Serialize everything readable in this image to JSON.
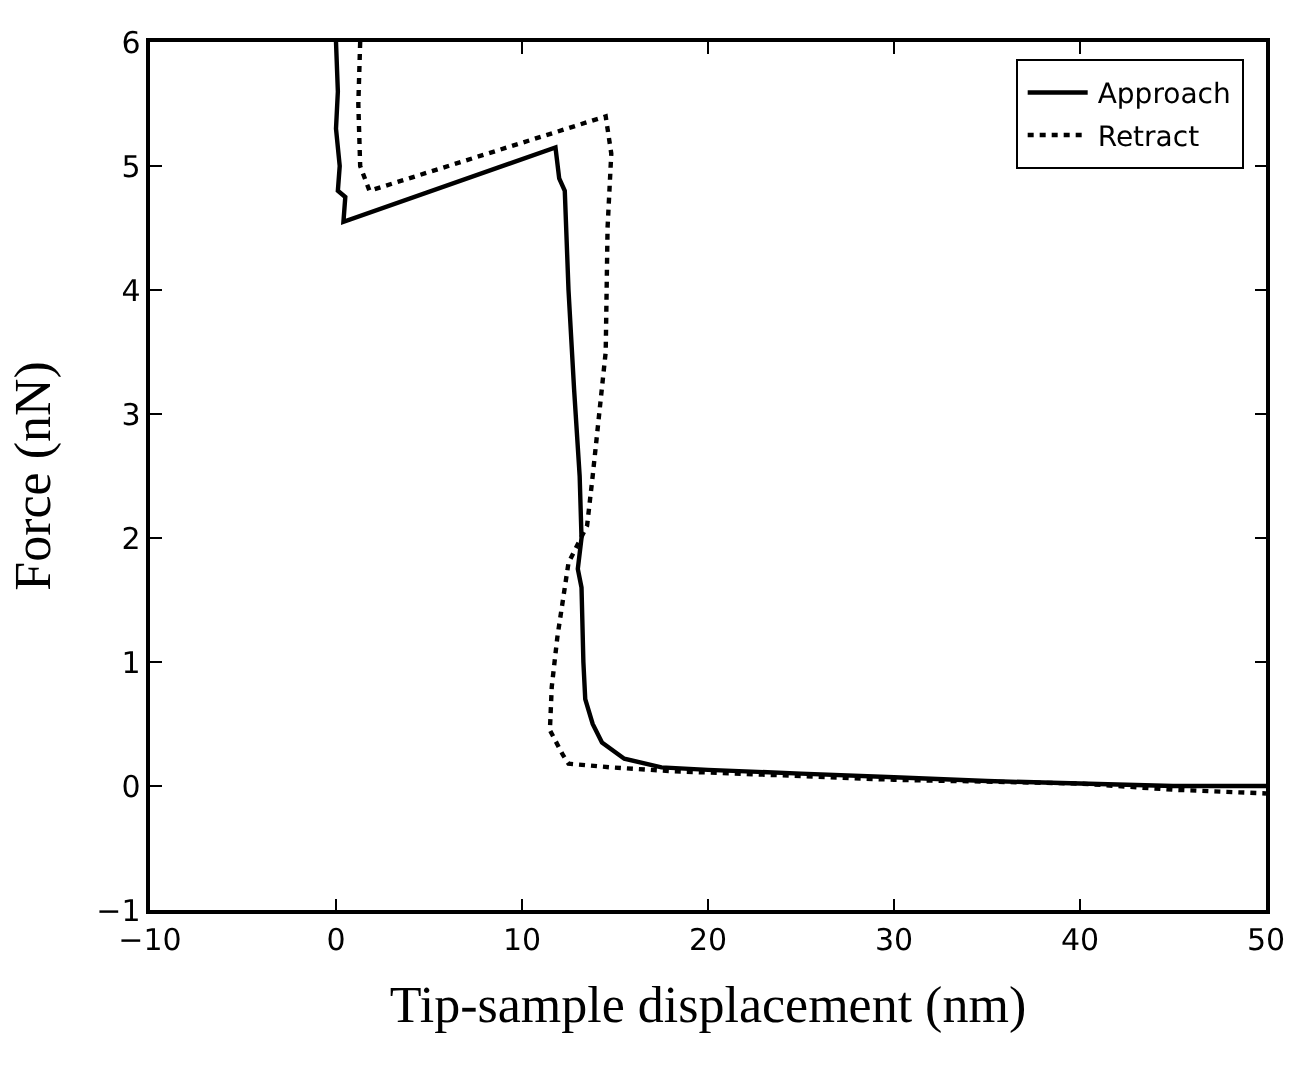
{
  "chart_data": {
    "type": "line",
    "xlabel": "Tip-sample displacement (nm)",
    "ylabel": "Force (nN)",
    "xlim": [
      -10,
      50
    ],
    "xticks": [
      -10,
      0,
      10,
      20,
      30,
      40,
      50
    ],
    "ylim": [
      -1,
      6
    ],
    "yticks": [
      -1,
      0,
      1,
      2,
      3,
      4,
      5,
      6
    ],
    "legend": "top right",
    "marker": "none",
    "series": [
      {
        "name": "Approach",
        "color": "#000000",
        "line_style": "solid",
        "x": [
          0,
          0.1,
          0,
          0.2,
          0.1,
          0.5,
          0.4,
          11.8,
          12.0,
          12.3,
          12.5,
          12.8,
          13.1,
          13.2,
          13.0,
          13.2,
          13.3,
          13.4,
          13.8,
          14.3,
          15.5,
          17.5,
          20,
          25,
          30,
          35,
          40,
          45,
          50
        ],
        "values": [
          6,
          5.6,
          5.3,
          5.0,
          4.8,
          4.75,
          4.55,
          5.15,
          4.9,
          4.8,
          4.0,
          3.2,
          2.5,
          2.0,
          1.75,
          1.6,
          1.0,
          0.7,
          0.5,
          0.35,
          0.22,
          0.15,
          0.13,
          0.1,
          0.07,
          0.04,
          0.02,
          0.0,
          0.0
        ]
      },
      {
        "name": "Retract",
        "color": "#000000",
        "line_style": "dotted",
        "x": [
          1.3,
          1.2,
          1.3,
          1.8,
          14.5,
          14.8,
          14.6,
          14.5,
          13.8,
          13.5,
          12.5,
          11.9,
          11.6,
          11.5,
          12.2,
          12.5,
          14.8,
          18,
          25,
          30,
          40,
          45,
          50
        ],
        "values": [
          6,
          5.5,
          5.0,
          4.8,
          5.4,
          5.1,
          4.5,
          3.5,
          2.5,
          2.1,
          1.8,
          1.2,
          0.8,
          0.45,
          0.25,
          0.18,
          0.15,
          0.12,
          0.08,
          0.05,
          0.02,
          -0.03,
          -0.06
        ]
      }
    ]
  }
}
